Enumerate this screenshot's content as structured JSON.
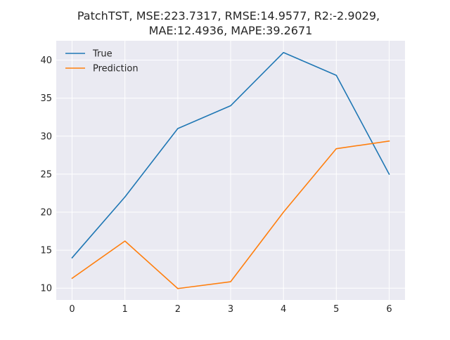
{
  "chart_data": {
    "type": "line",
    "title_lines": [
      "PatchTST, MSE:223.7317, RMSE:14.9577, R2:-2.9029,",
      "MAE:12.4936, MAPE:39.2671"
    ],
    "xlabel": "",
    "ylabel": "",
    "x": [
      0,
      1,
      2,
      3,
      4,
      5,
      6
    ],
    "xlim": [
      -0.3,
      6.3
    ],
    "ylim": [
      8.45,
      42.55
    ],
    "xticks": [
      "0",
      "1",
      "2",
      "3",
      "4",
      "5",
      "6"
    ],
    "yticks": [
      "10",
      "15",
      "20",
      "25",
      "30",
      "35",
      "40"
    ],
    "grid": true,
    "legend_position": "top-left",
    "series": [
      {
        "name": "True",
        "color": "#1f77b4",
        "values": [
          14,
          22,
          31,
          34,
          41,
          38,
          25
        ]
      },
      {
        "name": "Prediction",
        "color": "#ff7f0e",
        "values": [
          11.3,
          16.2,
          9.95,
          10.85,
          20.0,
          28.35,
          29.35
        ]
      }
    ],
    "plot_background": "#eaeaf2",
    "grid_color": "#ffffff"
  }
}
